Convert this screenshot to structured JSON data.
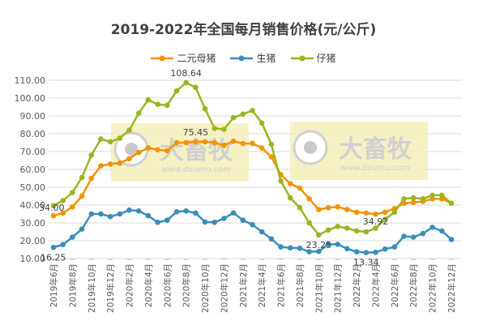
{
  "chart_data": {
    "type": "line",
    "title": "2019-2022年全国每月销售价格(元/公斤)",
    "xlabel": "",
    "ylabel": "",
    "ylim": [
      10,
      110
    ],
    "yticks": [
      "10.00",
      "20.00",
      "30.00",
      "40.00",
      "50.00",
      "60.00",
      "70.00",
      "80.00",
      "90.00",
      "100.00",
      "110.00"
    ],
    "grid": true,
    "legend_position": "top",
    "x": [
      "2019年6月",
      "2019年7月",
      "2019年8月",
      "2019年9月",
      "2019年10月",
      "2019年11月",
      "2019年12月",
      "2020年1月",
      "2020年2月",
      "2020年3月",
      "2020年4月",
      "2020年5月",
      "2020年6月",
      "2020年7月",
      "2020年8月",
      "2020年9月",
      "2020年10月",
      "2020年11月",
      "2020年12月",
      "2021年1月",
      "2021年2月",
      "2021年3月",
      "2021年4月",
      "2021年5月",
      "2021年6月",
      "2021年7月",
      "2021年8月",
      "2021年9月",
      "2021年10月",
      "2021年11月",
      "2021年12月",
      "2022年1月",
      "2022年2月",
      "2022年3月",
      "2022年4月",
      "2022年5月",
      "2022年6月",
      "2022年7月",
      "2022年8月",
      "2022年9月",
      "2022年10月",
      "2022年11月",
      "2022年12月"
    ],
    "xtick_labels": [
      "2019年6月",
      "2019年8月",
      "2019年10月",
      "2019年12月",
      "2020年2月",
      "2020年4月",
      "2020年6月",
      "2020年8月",
      "2020年10月",
      "2020年12月",
      "2021年2月",
      "2021年4月",
      "2021年6月",
      "2021年8月",
      "2021年10月",
      "2021年12月",
      "2022年2月",
      "2022年4月",
      "2022年6月",
      "2022年8月",
      "2022年10月",
      "2022年12月"
    ],
    "series": [
      {
        "name": "二元母猪",
        "color": "#f39200",
        "values": [
          34.0,
          35.5,
          39,
          45,
          55,
          62,
          63,
          63.5,
          66,
          69.5,
          72,
          71,
          70.5,
          75,
          75,
          75.45,
          75.45,
          75,
          73.5,
          75.8,
          74.5,
          74.5,
          72,
          67,
          57,
          52,
          49.5,
          43.5,
          37.5,
          38.5,
          39,
          37.5,
          36,
          35.5,
          34.92,
          36,
          38,
          41,
          41.5,
          42,
          43.5,
          43.5,
          41
        ]
      },
      {
        "name": "生猪",
        "color": "#3a8dbb",
        "values": [
          16.25,
          17.8,
          22,
          26.5,
          35,
          35,
          33.5,
          35,
          37.2,
          36.7,
          34,
          30.3,
          31.5,
          36.2,
          36.7,
          35.5,
          30.5,
          30.3,
          32.5,
          35.6,
          31.5,
          29,
          25,
          21,
          16.5,
          16,
          15.8,
          13.8,
          14,
          18,
          18,
          15.5,
          13.8,
          13.34,
          13.5,
          15.3,
          16.5,
          22.5,
          22,
          24,
          27.5,
          25.5,
          20.7
        ]
      },
      {
        "name": "仔猪",
        "color": "#9bb520",
        "values": [
          39.6,
          42.5,
          47,
          55.5,
          68,
          77,
          75.5,
          77.5,
          82,
          91.5,
          99,
          96.5,
          96,
          104,
          108.64,
          106,
          94,
          83,
          82.5,
          89,
          91,
          93,
          86,
          74,
          53.5,
          44,
          38.5,
          30,
          23.25,
          26,
          28,
          27,
          25.5,
          25,
          27,
          32,
          36,
          43.5,
          44,
          43.5,
          45.5,
          45.5,
          41
        ]
      }
    ],
    "annotations": [
      {
        "series": "二元母猪",
        "x": "2019年6月",
        "text": "34.00"
      },
      {
        "series": "二元母猪",
        "x": "2020年9月",
        "text": "75.45"
      },
      {
        "series": "二元母猪",
        "x": "2022年4月",
        "text": "34.92"
      },
      {
        "series": "生猪",
        "x": "2019年6月",
        "text": "16.25"
      },
      {
        "series": "生猪",
        "x": "2022年3月",
        "text": "13.34"
      },
      {
        "series": "仔猪",
        "x": "2020年8月",
        "text": "108.64"
      },
      {
        "series": "仔猪",
        "x": "2021年10月",
        "text": "23.25"
      }
    ],
    "watermark": {
      "text": "大畜牧",
      "url_text": "www.dxumu.com"
    }
  }
}
